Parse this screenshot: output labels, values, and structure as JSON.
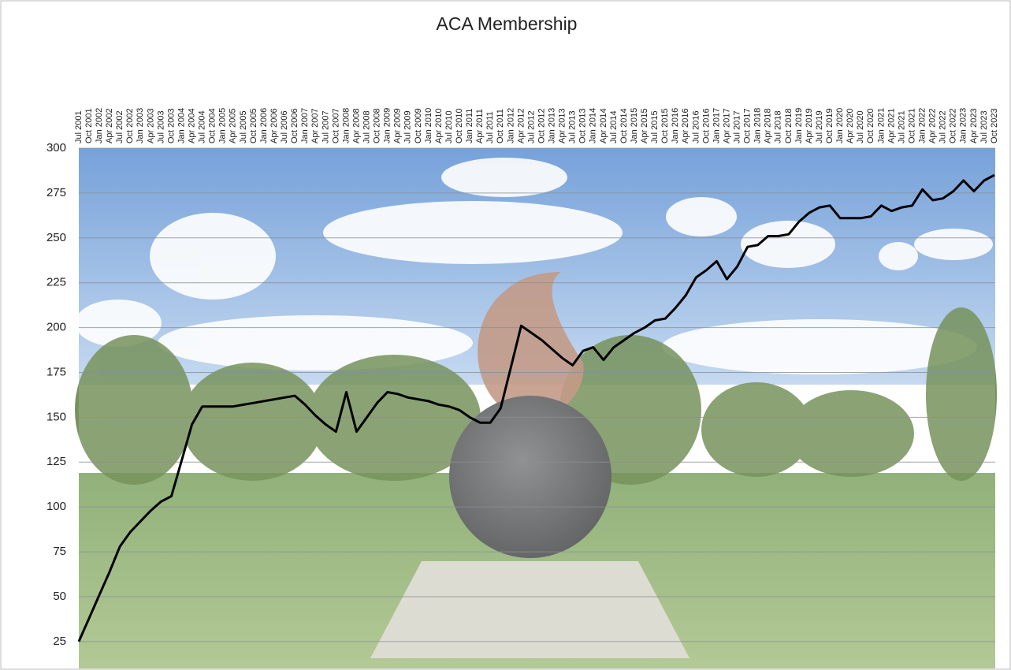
{
  "chart_data": {
    "type": "line",
    "title": "ACA Membership",
    "categories": [
      "Jul 2001",
      "Oct 2001",
      "Jan 2002",
      "Apr 2002",
      "Jul 2002",
      "Oct 2002",
      "Jan 2003",
      "Apr 2003",
      "Jul 2003",
      "Oct 2003",
      "Jan 2004",
      "Apr 2004",
      "Jul 2004",
      "Oct 2004",
      "Jan 2005",
      "Apr 2005",
      "Jul 2005",
      "Oct 2005",
      "Jan 2006",
      "Apr 2006",
      "Jul 2006",
      "Oct 2006",
      "Jan 2007",
      "Apr 2007",
      "Jul 2007",
      "Oct 2007",
      "Jan 2008",
      "Apr 2008",
      "Jul 2008",
      "Oct 2008",
      "Jan 2009",
      "Apr 2009",
      "Jul 2009",
      "Oct 2009",
      "Jan 2010",
      "Apr 2010",
      "Jul 2010",
      "Oct 2010",
      "Jan 2011",
      "Apr 2011",
      "Jul 2011",
      "Oct 2011",
      "Jan 2012",
      "Apr 2012",
      "Jul 2012",
      "Oct 2012",
      "Jan 2013",
      "Apr 2013",
      "Jul 2013",
      "Oct 2013",
      "Jan 2014",
      "Apr 2014",
      "Jul 2014",
      "Oct 2014",
      "Jan 2015",
      "Apr 2015",
      "Jul 2015",
      "Oct 2015",
      "Jan 2016",
      "Apr 2016",
      "Jul 2016",
      "Oct 2016",
      "Jan 2017",
      "Apr 2017",
      "Jul 2017",
      "Oct 2017",
      "Jan 2018",
      "Apr 2018",
      "Jul 2018",
      "Oct 2018",
      "Jan 2019",
      "Apr 2019",
      "Jul 2019",
      "Oct 2019",
      "Jan 2020",
      "Apr 2020",
      "Jul 2020",
      "Oct 2020",
      "Jan 2021",
      "Apr 2021",
      "Jul 2021",
      "Oct 2021",
      "Jan 2022",
      "Apr 2022",
      "Jul 2022",
      "Oct 2022",
      "Jan 2023",
      "Apr 2023",
      "Jul 2023",
      "Oct 2023"
    ],
    "values": [
      25,
      38,
      51,
      64,
      78,
      86,
      92,
      98,
      103,
      106,
      126,
      146,
      156,
      156,
      156,
      156,
      157,
      158,
      159,
      160,
      161,
      162,
      157,
      151,
      146,
      142,
      164,
      142,
      150,
      158,
      164,
      163,
      161,
      160,
      159,
      157,
      156,
      154,
      150,
      147,
      147,
      155,
      178,
      201,
      197,
      193,
      188,
      183,
      179,
      187,
      189,
      182,
      189,
      193,
      197,
      200,
      204,
      205,
      211,
      218,
      228,
      232,
      237,
      227,
      234,
      245,
      246,
      251,
      251,
      252,
      259,
      264,
      267,
      268,
      261,
      261,
      261,
      262,
      268,
      265,
      267,
      268,
      277,
      271,
      272,
      276,
      282,
      276,
      282,
      285
    ],
    "color": "#000000",
    "ylim": [
      10,
      300
    ],
    "yticks": [
      25,
      50,
      75,
      100,
      125,
      150,
      175,
      200,
      225,
      250,
      275,
      300
    ],
    "grid": true
  }
}
